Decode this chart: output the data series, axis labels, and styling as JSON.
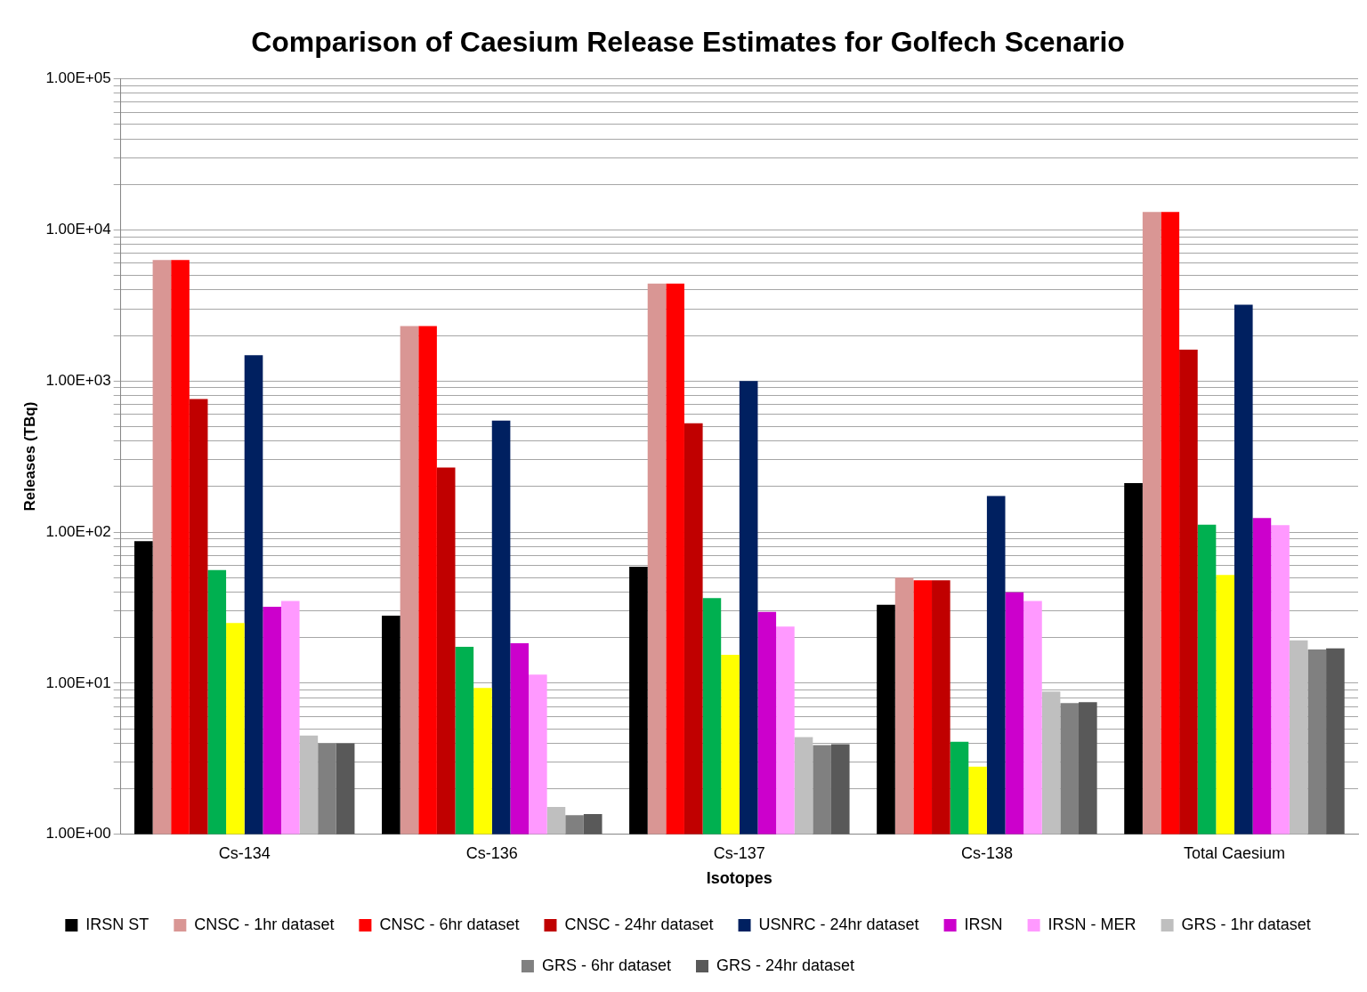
{
  "chart_data": {
    "type": "bar",
    "title": "Comparison of Caesium Release Estimates for Golfech Scenario",
    "xlabel": "Isotopes",
    "ylabel": "Releases (TBq)",
    "categories": [
      "Cs-134",
      "Cs-136",
      "Cs-137",
      "Cs-138",
      "Total Caesium"
    ],
    "log": "y",
    "ylim": [
      1,
      100000
    ],
    "yticks": [
      {
        "value": 1,
        "label": "1.00E+00"
      },
      {
        "value": 2,
        "label": null
      },
      {
        "value": 3,
        "label": null
      },
      {
        "value": 4,
        "label": null
      },
      {
        "value": 5,
        "label": null
      },
      {
        "value": 6,
        "label": null
      },
      {
        "value": 7,
        "label": null
      },
      {
        "value": 8,
        "label": null
      },
      {
        "value": 9,
        "label": null
      },
      {
        "value": 10,
        "label": "1.00E+01"
      },
      {
        "value": 20,
        "label": null
      },
      {
        "value": 30,
        "label": null
      },
      {
        "value": 40,
        "label": null
      },
      {
        "value": 50,
        "label": null
      },
      {
        "value": 60,
        "label": null
      },
      {
        "value": 70,
        "label": null
      },
      {
        "value": 80,
        "label": null
      },
      {
        "value": 90,
        "label": null
      },
      {
        "value": 100,
        "label": "1.00E+02"
      },
      {
        "value": 200,
        "label": null
      },
      {
        "value": 300,
        "label": null
      },
      {
        "value": 400,
        "label": null
      },
      {
        "value": 500,
        "label": null
      },
      {
        "value": 600,
        "label": null
      },
      {
        "value": 700,
        "label": null
      },
      {
        "value": 800,
        "label": null
      },
      {
        "value": 900,
        "label": null
      },
      {
        "value": 1000,
        "label": "1.00E+03"
      },
      {
        "value": 2000,
        "label": null
      },
      {
        "value": 3000,
        "label": null
      },
      {
        "value": 4000,
        "label": null
      },
      {
        "value": 5000,
        "label": null
      },
      {
        "value": 6000,
        "label": null
      },
      {
        "value": 7000,
        "label": null
      },
      {
        "value": 8000,
        "label": null
      },
      {
        "value": 9000,
        "label": null
      },
      {
        "value": 10000,
        "label": "1.00E+04"
      },
      {
        "value": 20000,
        "label": null
      },
      {
        "value": 30000,
        "label": null
      },
      {
        "value": 40000,
        "label": null
      },
      {
        "value": 50000,
        "label": null
      },
      {
        "value": 60000,
        "label": null
      },
      {
        "value": 70000,
        "label": null
      },
      {
        "value": 80000,
        "label": null
      },
      {
        "value": 90000,
        "label": null
      },
      {
        "value": 100000,
        "label": "1.00E+05"
      }
    ],
    "grid": "y",
    "legend": "bottom",
    "series": [
      {
        "name": "IRSN ST",
        "color": "#000000",
        "values": [
          87,
          28,
          59,
          33,
          211
        ]
      },
      {
        "name": "CNSC - 1hr dataset",
        "color": "#d99694",
        "values": [
          6300,
          2310,
          4400,
          50,
          13100
        ]
      },
      {
        "name": "CNSC - 6hr dataset",
        "color": "#ff0000",
        "values": [
          6300,
          2310,
          4400,
          48,
          13100
        ]
      },
      {
        "name": "CNSC - 24hr dataset",
        "color": "#c00000",
        "values": [
          760,
          267,
          524,
          48,
          1610
        ]
      },
      {
        "color": "#00b050",
        "values": [
          56,
          17.4,
          36.6,
          4.1,
          112
        ]
      },
      {
        "color": "#ffff00",
        "values": [
          25,
          9.3,
          15.4,
          2.8,
          52
        ]
      },
      {
        "name": "USNRC - 24hr dataset",
        "color": "#002060",
        "values": [
          1480,
          546,
          1000,
          173,
          3190
        ]
      },
      {
        "name": "IRSN",
        "color": "#cc00cc",
        "values": [
          32,
          18.4,
          29.6,
          40,
          124
        ]
      },
      {
        "name": "IRSN - MER",
        "color": "#ff99ff",
        "values": [
          35,
          11.4,
          23.7,
          35,
          111
        ]
      },
      {
        "name": "GRS - 1hr dataset",
        "color": "#bfbfbf",
        "values": [
          4.5,
          1.52,
          4.4,
          8.8,
          19.2
        ]
      },
      {
        "name": "GRS - 6hr dataset",
        "color": "#808080",
        "values": [
          4.0,
          1.34,
          3.9,
          7.4,
          16.7
        ]
      },
      {
        "name": "GRS - 24hr dataset",
        "color": "#595959",
        "values": [
          4.0,
          1.36,
          3.95,
          7.5,
          17.0
        ]
      }
    ]
  }
}
